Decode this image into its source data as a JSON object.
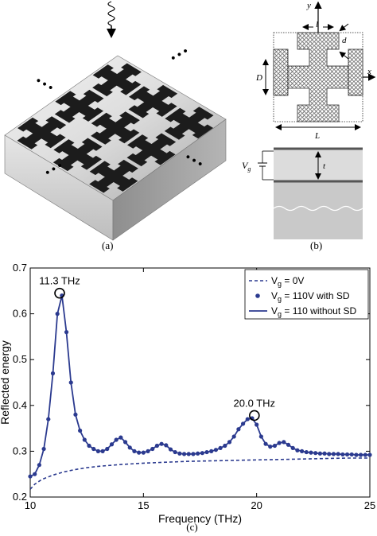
{
  "panel_a": {
    "caption": "(a)",
    "ellipsis": "• • •"
  },
  "panel_b": {
    "caption": "(b)",
    "labels": {
      "y": "y",
      "l": "l",
      "d": "d",
      "x": "x",
      "D": "D",
      "L": "L",
      "Vg": "V",
      "Vg_sub": "g",
      "t": "t"
    }
  },
  "panel_c": {
    "caption": "(c)"
  },
  "chart_data": {
    "type": "line",
    "xlabel": "Frequency (THz)",
    "ylabel": "Reflected energy",
    "xlim": [
      10,
      25
    ],
    "ylim": [
      0.2,
      0.7
    ],
    "xticks": [
      10,
      15,
      20,
      25
    ],
    "yticks": [
      0.2,
      0.3,
      0.4,
      0.5,
      0.6,
      0.7
    ],
    "legend_position": "top-right",
    "annotations": [
      {
        "text": "11.3 THz",
        "x": 11.3,
        "y": 0.645
      },
      {
        "text": "20.0 THz",
        "x": 19.9,
        "y": 0.378
      }
    ],
    "colors": {
      "series": "#2b3a8f"
    },
    "series": [
      {
        "name": "V",
        "name_sub": "g",
        "name_rest": " = 0V",
        "style": "dashed",
        "x": [
          10.0,
          10.2,
          10.5,
          11.0,
          11.5,
          12.0,
          12.5,
          13.0,
          14.0,
          15.0,
          16.0,
          17.0,
          18.0,
          19.0,
          20.0,
          21.0,
          22.0,
          23.0,
          24.0,
          25.0
        ],
        "values": [
          0.217,
          0.228,
          0.238,
          0.248,
          0.255,
          0.26,
          0.264,
          0.267,
          0.271,
          0.274,
          0.276,
          0.278,
          0.279,
          0.28,
          0.281,
          0.282,
          0.283,
          0.284,
          0.285,
          0.285
        ]
      },
      {
        "name": "V",
        "name_sub": "g",
        "name_rest": " = 110V with SD",
        "style": "markers",
        "x": [
          10.0,
          10.2,
          10.4,
          10.6,
          10.8,
          11.0,
          11.2,
          11.4,
          11.6,
          11.8,
          12.0,
          12.2,
          12.4,
          12.6,
          12.8,
          13.0,
          13.2,
          13.4,
          13.6,
          13.8,
          14.0,
          14.2,
          14.4,
          14.6,
          14.8,
          15.0,
          15.2,
          15.4,
          15.6,
          15.8,
          16.0,
          16.2,
          16.4,
          16.6,
          16.8,
          17.0,
          17.2,
          17.4,
          17.6,
          17.8,
          18.0,
          18.2,
          18.4,
          18.6,
          18.8,
          19.0,
          19.2,
          19.4,
          19.6,
          19.8,
          20.0,
          20.2,
          20.4,
          20.6,
          20.8,
          21.0,
          21.2,
          21.4,
          21.6,
          21.8,
          22.0,
          22.2,
          22.4,
          22.6,
          22.8,
          23.0,
          23.2,
          23.4,
          23.6,
          23.8,
          24.0,
          24.2,
          24.4,
          24.6,
          24.8,
          25.0
        ],
        "values": [
          0.245,
          0.25,
          0.27,
          0.305,
          0.37,
          0.47,
          0.6,
          0.64,
          0.56,
          0.45,
          0.38,
          0.345,
          0.325,
          0.312,
          0.305,
          0.3,
          0.3,
          0.305,
          0.315,
          0.325,
          0.33,
          0.32,
          0.308,
          0.3,
          0.297,
          0.297,
          0.3,
          0.305,
          0.312,
          0.316,
          0.313,
          0.304,
          0.298,
          0.295,
          0.294,
          0.294,
          0.294,
          0.295,
          0.296,
          0.298,
          0.3,
          0.303,
          0.307,
          0.312,
          0.32,
          0.332,
          0.348,
          0.36,
          0.37,
          0.372,
          0.358,
          0.332,
          0.316,
          0.31,
          0.312,
          0.318,
          0.32,
          0.314,
          0.307,
          0.302,
          0.3,
          0.298,
          0.297,
          0.296,
          0.295,
          0.295,
          0.294,
          0.294,
          0.294,
          0.293,
          0.293,
          0.293,
          0.292,
          0.292,
          0.292,
          0.292
        ]
      },
      {
        "name": "V",
        "name_sub": "g",
        "name_rest": " = 110 without SD",
        "style": "solid",
        "x": [
          10.0,
          10.2,
          10.4,
          10.6,
          10.8,
          11.0,
          11.2,
          11.4,
          11.6,
          11.8,
          12.0,
          12.2,
          12.4,
          12.6,
          12.8,
          13.0,
          13.2,
          13.4,
          13.6,
          13.8,
          14.0,
          14.2,
          14.4,
          14.6,
          14.8,
          15.0,
          15.2,
          15.4,
          15.6,
          15.8,
          16.0,
          16.2,
          16.4,
          16.6,
          16.8,
          17.0,
          17.2,
          17.4,
          17.6,
          17.8,
          18.0,
          18.2,
          18.4,
          18.6,
          18.8,
          19.0,
          19.2,
          19.4,
          19.6,
          19.8,
          20.0,
          20.2,
          20.4,
          20.6,
          20.8,
          21.0,
          21.2,
          21.4,
          21.6,
          21.8,
          22.0,
          22.2,
          22.4,
          22.6,
          22.8,
          23.0,
          23.2,
          23.4,
          23.6,
          23.8,
          24.0,
          24.2,
          24.4,
          24.6,
          24.8,
          25.0
        ],
        "values": [
          0.245,
          0.25,
          0.27,
          0.305,
          0.37,
          0.47,
          0.6,
          0.64,
          0.56,
          0.45,
          0.38,
          0.345,
          0.325,
          0.312,
          0.305,
          0.3,
          0.3,
          0.305,
          0.315,
          0.325,
          0.33,
          0.32,
          0.308,
          0.3,
          0.297,
          0.297,
          0.3,
          0.305,
          0.312,
          0.316,
          0.313,
          0.304,
          0.298,
          0.295,
          0.294,
          0.294,
          0.294,
          0.295,
          0.296,
          0.298,
          0.3,
          0.303,
          0.307,
          0.312,
          0.32,
          0.332,
          0.348,
          0.36,
          0.37,
          0.372,
          0.358,
          0.332,
          0.316,
          0.31,
          0.312,
          0.318,
          0.32,
          0.314,
          0.307,
          0.302,
          0.3,
          0.298,
          0.297,
          0.296,
          0.295,
          0.295,
          0.294,
          0.294,
          0.294,
          0.293,
          0.293,
          0.293,
          0.292,
          0.292,
          0.292,
          0.292
        ]
      }
    ]
  }
}
